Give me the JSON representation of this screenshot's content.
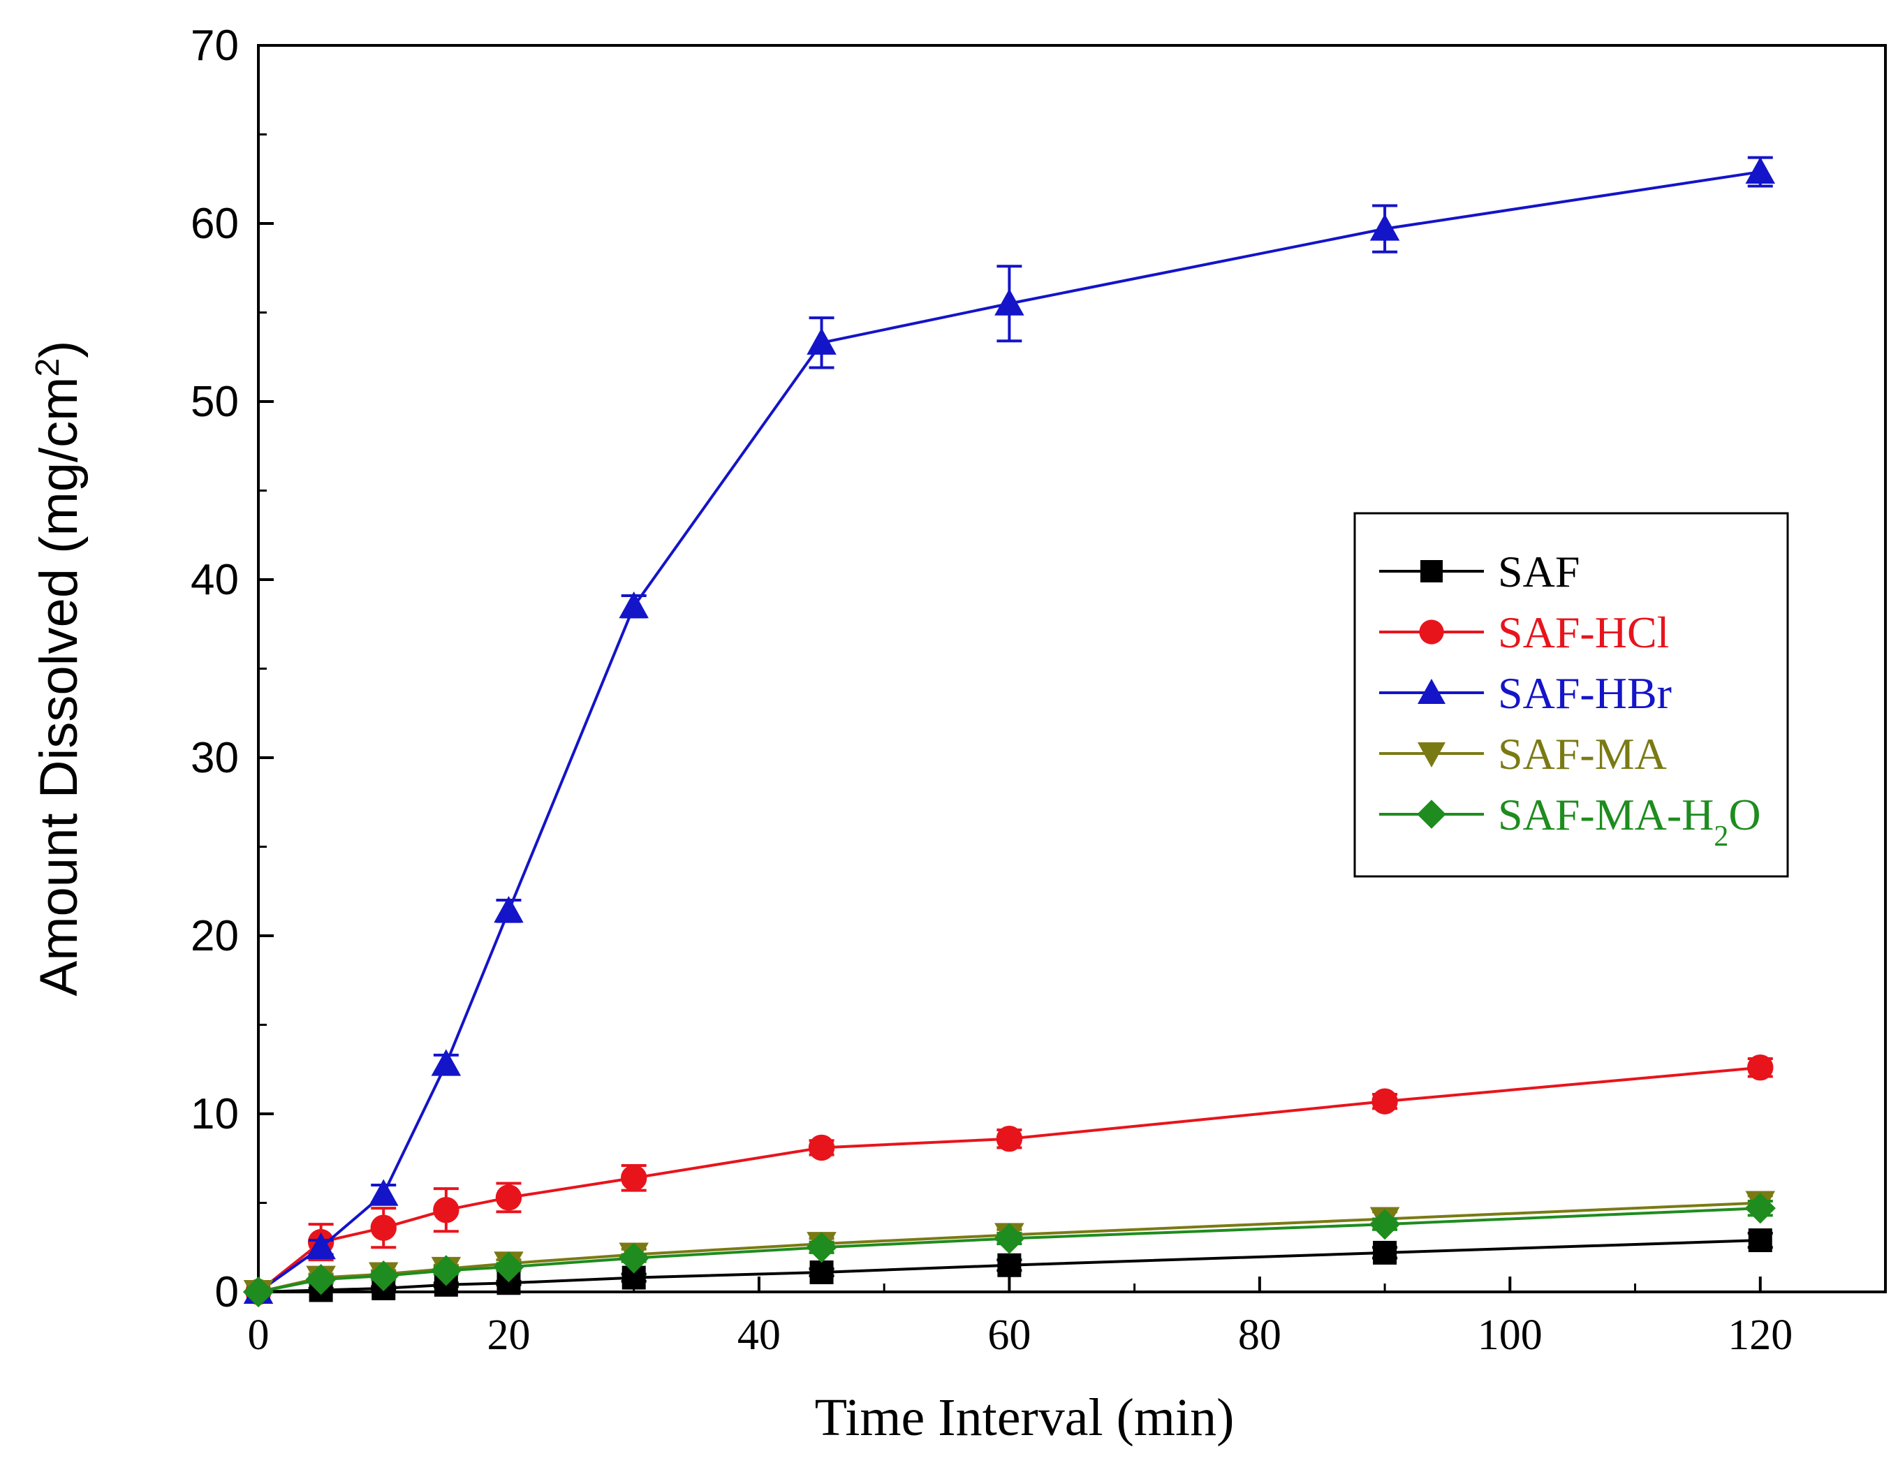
{
  "chart_data": {
    "type": "line",
    "title": "",
    "xlabel": "Time Interval (min)",
    "ylabel_main": "Amount Dissolved (mg/cm",
    "ylabel_sup": "2",
    "ylabel_close": ")",
    "xlim": [
      0,
      130
    ],
    "ylim": [
      0,
      70
    ],
    "xticks": [
      0,
      20,
      40,
      60,
      80,
      100,
      120
    ],
    "yticks": [
      0,
      10,
      20,
      30,
      40,
      50,
      60,
      70
    ],
    "legend_position": "center-right",
    "grid": false,
    "x": [
      0,
      5,
      10,
      15,
      20,
      30,
      45,
      60,
      90,
      120
    ],
    "series": [
      {
        "name": "SAF",
        "name_sub": "",
        "name_suffix": "",
        "color": "#000000",
        "marker": "square",
        "values": [
          0,
          0.1,
          0.2,
          0.4,
          0.5,
          0.8,
          1.1,
          1.5,
          2.2,
          2.9
        ],
        "errors": [
          0,
          0.1,
          0.1,
          0.1,
          0.1,
          0.2,
          0.2,
          0.3,
          0.3,
          0.4
        ]
      },
      {
        "name": "SAF-HCl",
        "name_sub": "",
        "name_suffix": "",
        "color": "#e8141c",
        "marker": "circle",
        "values": [
          0,
          2.8,
          3.6,
          4.6,
          5.3,
          6.4,
          8.1,
          8.6,
          10.7,
          12.6
        ],
        "errors": [
          0,
          1.0,
          1.1,
          1.2,
          0.8,
          0.7,
          0.4,
          0.5,
          0.4,
          0.5
        ]
      },
      {
        "name": "SAF-HBr",
        "name_sub": "",
        "name_suffix": "",
        "color": "#1414c8",
        "marker": "triangle-up",
        "values": [
          0,
          2.5,
          5.5,
          12.8,
          21.4,
          38.5,
          53.3,
          55.5,
          59.7,
          62.9
        ],
        "errors": [
          0,
          0.4,
          0.5,
          0.5,
          0.6,
          0.6,
          1.4,
          2.1,
          1.3,
          0.8
        ]
      },
      {
        "name": "SAF-MA",
        "name_sub": "",
        "name_suffix": "",
        "color": "#7a7a14",
        "marker": "triangle-down",
        "values": [
          0,
          0.8,
          1.0,
          1.3,
          1.6,
          2.1,
          2.7,
          3.2,
          4.1,
          5.0
        ],
        "errors": [
          0,
          0.2,
          0.2,
          0.2,
          0.2,
          0.3,
          0.3,
          0.3,
          0.4,
          0.4
        ]
      },
      {
        "name": "SAF-MA-H",
        "name_sub": "2",
        "name_suffix": "O",
        "color": "#1e8c1e",
        "marker": "diamond",
        "values": [
          0,
          0.7,
          0.9,
          1.2,
          1.4,
          1.9,
          2.5,
          3.0,
          3.8,
          4.7
        ],
        "errors": [
          0,
          0.2,
          0.2,
          0.2,
          0.2,
          0.2,
          0.3,
          0.3,
          0.3,
          0.4
        ]
      }
    ]
  }
}
